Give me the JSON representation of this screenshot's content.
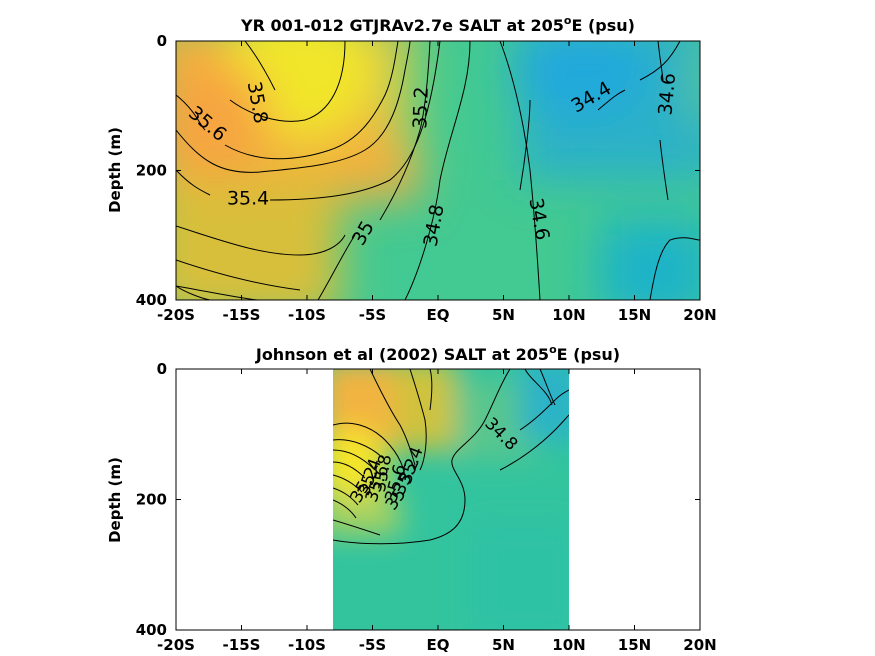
{
  "chart_data": [
    {
      "type": "heatmap",
      "title_main": "YR 001-012 GTJRAv2.7e SALT at 205",
      "title_sup": "o",
      "title_tail": "E (psu)",
      "ylabel": "Depth (m)",
      "xlabel": "",
      "xlim": [
        -20,
        20
      ],
      "ylim": [
        400,
        0
      ],
      "y_reversed": true,
      "x_ticks": [
        -20,
        -15,
        -10,
        -5,
        0,
        5,
        10,
        15,
        20
      ],
      "x_tick_labels": [
        "-20S",
        "-15S",
        "-10S",
        "-5S",
        "EQ",
        "5N",
        "10N",
        "15N",
        "20N"
      ],
      "y_ticks": [
        0,
        200,
        400
      ],
      "y_tick_labels": [
        "0",
        "200",
        "400"
      ],
      "data_extent_x": [
        -20,
        20
      ],
      "contour_labels": [
        {
          "text": "35.8",
          "x": -13.8,
          "y": 95,
          "angle": 80
        },
        {
          "text": "35.6",
          "x": -17.6,
          "y": 128,
          "angle": 40
        },
        {
          "text": "35.4",
          "x": -14.5,
          "y": 243,
          "angle": 0
        },
        {
          "text": "35.2",
          "x": -1.3,
          "y": 103,
          "angle": -88
        },
        {
          "text": "35",
          "x": -5.7,
          "y": 297,
          "angle": -60
        },
        {
          "text": "34.8",
          "x": -0.3,
          "y": 285,
          "angle": -80
        },
        {
          "text": "34.6",
          "x": 7.7,
          "y": 275,
          "angle": 80
        },
        {
          "text": "34.4",
          "x": 11.7,
          "y": 87,
          "angle": -30
        },
        {
          "text": "34.6",
          "x": 17.5,
          "y": 82,
          "angle": -85
        }
      ]
    },
    {
      "type": "heatmap",
      "title_main": "Johnson et al (2002) SALT at 205",
      "title_sup": "o",
      "title_tail": "E (psu)",
      "ylabel": "Depth (m)",
      "xlabel": "",
      "xlim": [
        -20,
        20
      ],
      "ylim": [
        400,
        0
      ],
      "y_reversed": true,
      "x_ticks": [
        -20,
        -15,
        -10,
        -5,
        0,
        5,
        10,
        15,
        20
      ],
      "x_tick_labels": [
        "-20S",
        "-15S",
        "-10S",
        "-5S",
        "EQ",
        "5N",
        "10N",
        "15N",
        "20N"
      ],
      "y_ticks": [
        0,
        200,
        400
      ],
      "y_tick_labels": [
        "0",
        "200",
        "400"
      ],
      "data_extent_x": [
        -8,
        10
      ],
      "contour_labels": [
        {
          "text": "34.8",
          "x": 4.8,
          "y": 100,
          "angle": 45
        },
        {
          "text": "35",
          "x": -3.2,
          "y": 200,
          "angle": -55
        },
        {
          "text": "35.2",
          "x": -2.4,
          "y": 165,
          "angle": -65
        },
        {
          "text": "35.4",
          "x": -2.0,
          "y": 148,
          "angle": -70
        },
        {
          "text": "35.6",
          "x": -3.2,
          "y": 175,
          "angle": -75
        },
        {
          "text": "35.8",
          "x": -4.2,
          "y": 160,
          "angle": -80
        },
        {
          "text": "35.6",
          "x": -4.6,
          "y": 176,
          "angle": -70
        },
        {
          "text": "35.4",
          "x": -5.2,
          "y": 166,
          "angle": -70
        },
        {
          "text": "35.2",
          "x": -5.6,
          "y": 178,
          "angle": -60
        }
      ]
    }
  ],
  "colormap": {
    "low": "#1fa5db",
    "mid": "#3ec89a",
    "high": "#f3e52c",
    "accent": "#f5a83d"
  }
}
